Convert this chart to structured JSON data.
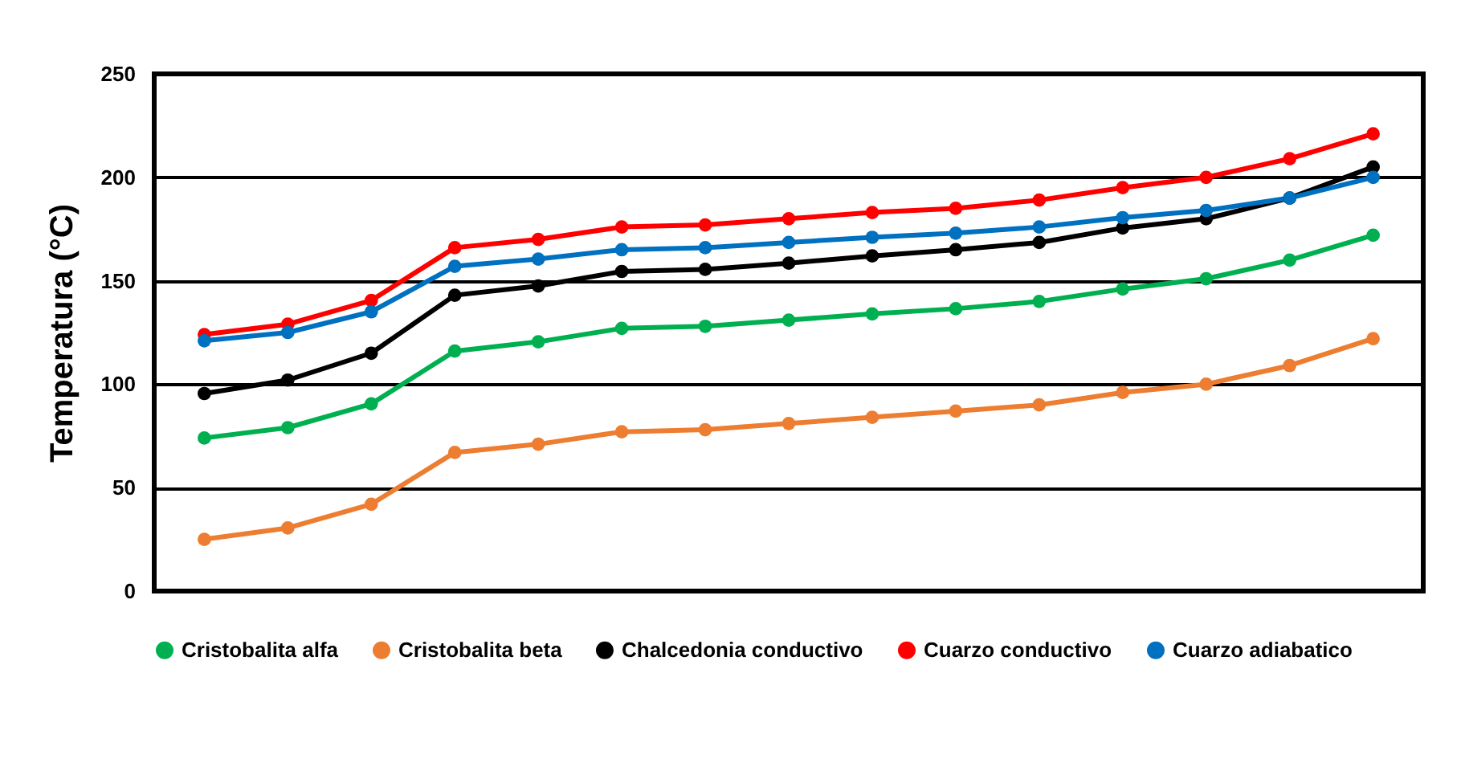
{
  "chart_data": {
    "type": "line",
    "ylabel": "Temperatura (°C)",
    "categories": [
      null,
      null,
      null,
      null,
      null,
      null,
      null,
      null,
      null,
      null,
      null,
      null,
      null,
      null,
      null
    ],
    "ylim": [
      0,
      250
    ],
    "yticks": [
      0,
      50,
      100,
      150,
      200,
      250
    ],
    "tick_labels": "y",
    "grid": "y",
    "legend": "bottom",
    "marker": "circle",
    "line_style": "solid",
    "series": [
      {
        "name": "Cristobalita alfa",
        "color": "#00b050",
        "values": [
          74,
          79,
          90.5,
          116,
          120.5,
          127,
          128,
          131,
          134,
          136.5,
          140,
          146,
          151,
          160,
          172
        ]
      },
      {
        "name": "Cristobalita beta",
        "color": "#ed7d31",
        "values": [
          25,
          30.5,
          42,
          67,
          71,
          77,
          78,
          81,
          84,
          87,
          90,
          96,
          100,
          109,
          122
        ]
      },
      {
        "name": "Chalcedonia conductivo",
        "color": "#000000",
        "values": [
          95.5,
          102,
          115,
          143,
          147.5,
          154.5,
          155.5,
          158.5,
          162,
          165,
          168.5,
          175.5,
          180,
          190,
          205
        ]
      },
      {
        "name": "Cuarzo conductivo",
        "color": "#ff0000",
        "values": [
          124,
          129,
          140.5,
          166,
          170,
          176,
          177,
          180,
          183,
          185,
          189,
          195,
          200,
          209,
          221
        ]
      },
      {
        "name": "Cuarzo adiabatico",
        "color": "#0070c0",
        "values": [
          121,
          125,
          135,
          157,
          160.5,
          165,
          166,
          168.5,
          171,
          173,
          176,
          180.5,
          184,
          190,
          200
        ]
      }
    ]
  }
}
